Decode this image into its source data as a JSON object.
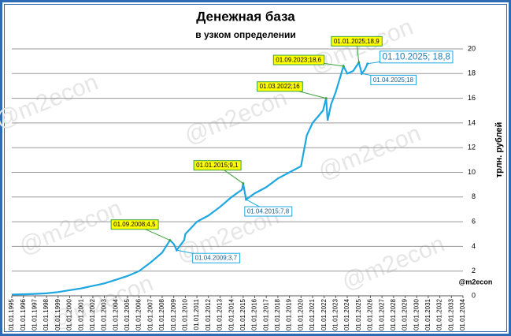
{
  "chart_data": {
    "type": "line",
    "title": "Денежная база",
    "subtitle": "в узком определении",
    "y_axis_label": "трлн. рублей",
    "source": "@m2econ",
    "watermark": "@m2econ",
    "grid": true,
    "xlim": [
      1995,
      2034
    ],
    "ylim": [
      0,
      20
    ],
    "yticks": [
      0,
      2,
      4,
      6,
      8,
      10,
      12,
      14,
      16,
      18,
      20
    ],
    "xticks": [
      {
        "value": 1995,
        "label": "01.01.1995"
      },
      {
        "value": 1996,
        "label": "01.01.1996"
      },
      {
        "value": 1997,
        "label": "01.01.1997"
      },
      {
        "value": 1998,
        "label": "01.01.1998"
      },
      {
        "value": 1999,
        "label": "01.01.1999"
      },
      {
        "value": 2000,
        "label": "01.01.2000"
      },
      {
        "value": 2001,
        "label": "01.01.2001"
      },
      {
        "value": 2002,
        "label": "01.01.2002"
      },
      {
        "value": 2003,
        "label": "01.01.2003"
      },
      {
        "value": 2004,
        "label": "01.01.2004"
      },
      {
        "value": 2005,
        "label": "01.01.2005"
      },
      {
        "value": 2006,
        "label": "01.01.2006"
      },
      {
        "value": 2007,
        "label": "01.01.2007"
      },
      {
        "value": 2008,
        "label": "01.01.2008"
      },
      {
        "value": 2009,
        "label": "01.01.2009"
      },
      {
        "value": 2010,
        "label": "01.01.2010"
      },
      {
        "value": 2011,
        "label": "01.01.2011"
      },
      {
        "value": 2012,
        "label": "01.01.2012"
      },
      {
        "value": 2013,
        "label": "01.01.2013"
      },
      {
        "value": 2014,
        "label": "01.01.2014"
      },
      {
        "value": 2015,
        "label": "01.01.2015"
      },
      {
        "value": 2016,
        "label": "01.01.2016"
      },
      {
        "value": 2017,
        "label": "01.01.2017"
      },
      {
        "value": 2018,
        "label": "01.01.2018"
      },
      {
        "value": 2019,
        "label": "01.01.2019"
      },
      {
        "value": 2020,
        "label": "01.01.2020"
      },
      {
        "value": 2021,
        "label": "01.01.2021"
      },
      {
        "value": 2022,
        "label": "01.01.2022"
      },
      {
        "value": 2023,
        "label": "01.01.2023"
      },
      {
        "value": 2024,
        "label": "01.01.2024"
      },
      {
        "value": 2025,
        "label": "01.01.2025"
      },
      {
        "value": 2026,
        "label": "01.01.2026"
      },
      {
        "value": 2027,
        "label": "01.01.2027"
      },
      {
        "value": 2028,
        "label": "01.01.2028"
      },
      {
        "value": 2029,
        "label": "01.01.2029"
      },
      {
        "value": 2030,
        "label": "01.01.2030"
      },
      {
        "value": 2031,
        "label": "01.01.2031"
      },
      {
        "value": 2032,
        "label": "01.01.2032"
      },
      {
        "value": 2033,
        "label": "01.01.2033"
      },
      {
        "value": 2034,
        "label": "01.01.2034"
      }
    ],
    "series": [
      {
        "name": "Денежная база",
        "color": "#1ea7e1",
        "x": [
          1995,
          1996,
          1997,
          1998,
          1999,
          2000,
          2001,
          2002,
          2003,
          2004,
          2005,
          2006,
          2007,
          2008,
          2008.67,
          2009,
          2009.25,
          2009.9,
          2010,
          2011,
          2012,
          2013,
          2014,
          2014.9,
          2015,
          2015.25,
          2016,
          2017,
          2018,
          2019,
          2020,
          2020.5,
          2021,
          2021.9,
          2022.17,
          2022.3,
          2022.6,
          2023,
          2023.67,
          2024,
          2024.5,
          2025,
          2025.25,
          2025.5,
          2025.75
        ],
        "values": [
          0.1,
          0.12,
          0.15,
          0.2,
          0.3,
          0.45,
          0.6,
          0.8,
          1.0,
          1.3,
          1.6,
          2.0,
          2.7,
          3.5,
          4.5,
          4.2,
          3.7,
          4.5,
          5.0,
          6.0,
          6.5,
          7.2,
          8.0,
          8.6,
          9.1,
          7.8,
          8.3,
          8.8,
          9.5,
          10.0,
          10.5,
          13.0,
          14.0,
          15.0,
          16.0,
          14.2,
          15.5,
          16.5,
          18.6,
          18.0,
          18.2,
          18.9,
          18.0,
          18.3,
          18.8
        ]
      }
    ],
    "annotations": [
      {
        "label": "01.09.2008;4,5",
        "x": 2008.67,
        "y": 4.5,
        "style": "peak"
      },
      {
        "label": "01.04.2009;3,7",
        "x": 2009.25,
        "y": 3.7,
        "style": "trough"
      },
      {
        "label": "01.01.2015;9,1",
        "x": 2015,
        "y": 9.1,
        "style": "peak"
      },
      {
        "label": "01.04.2015;7,8",
        "x": 2015.25,
        "y": 7.8,
        "style": "trough"
      },
      {
        "label": "01.03.2022;16",
        "x": 2022.17,
        "y": 16,
        "style": "peak"
      },
      {
        "label": "01.09.2023;18,6",
        "x": 2023.67,
        "y": 18.6,
        "style": "peak"
      },
      {
        "label": "01.01.2025;18,9",
        "x": 2025,
        "y": 18.9,
        "style": "peak"
      },
      {
        "label": "01.04.2025;18",
        "x": 2025.25,
        "y": 18,
        "style": "trough"
      },
      {
        "label": "01.10.2025; 18,8",
        "x": 2025.75,
        "y": 18.8,
        "style": "latest"
      }
    ]
  }
}
